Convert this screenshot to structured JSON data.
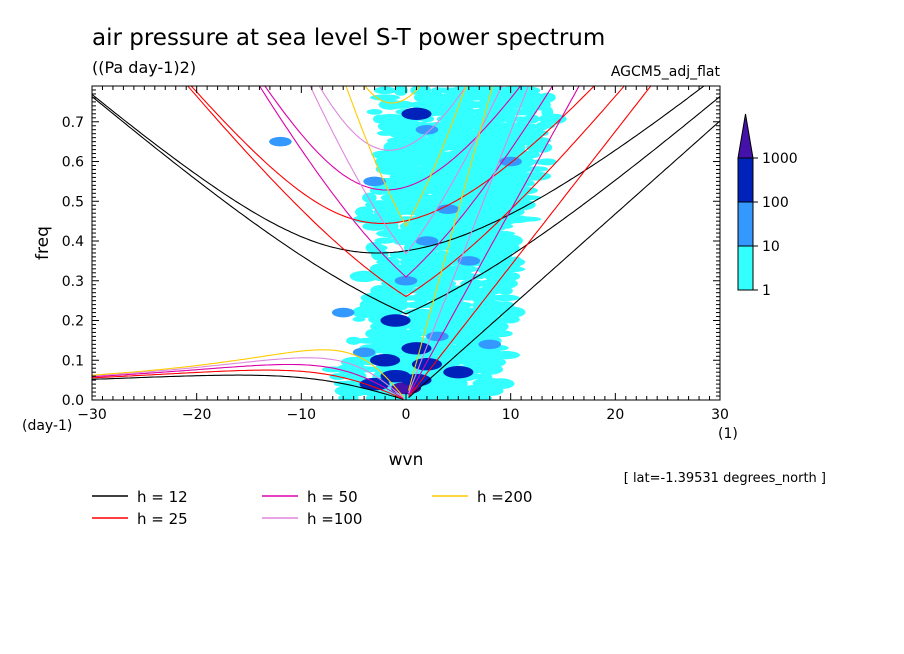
{
  "chart_data": {
    "type": "heatmap",
    "title": "air pressure at sea level S-T power spectrum",
    "units": "((Pa day-1)2)",
    "label_right": "AGCM5_adj_flat",
    "xlabel": "wvn",
    "ylabel": "freq",
    "x_unit": "(1)",
    "y_unit": "(day-1)",
    "xlim": [
      -30,
      30
    ],
    "ylim": [
      0,
      0.79
    ],
    "xticks": [
      -30,
      -20,
      -10,
      0,
      10,
      20,
      30
    ],
    "yticks": [
      0.0,
      0.1,
      0.2,
      0.3,
      0.4,
      0.5,
      0.6,
      0.7
    ],
    "annotation": "[ lat=-1.39531 degrees_north ]",
    "colorbar": {
      "levels": [
        "1",
        "10",
        "100",
        "1000"
      ],
      "colors": [
        "#33ffff",
        "#3399ff",
        "#0022bb",
        "#4411aa"
      ]
    },
    "legend": [
      {
        "label": "h = 12",
        "color": "#000000"
      },
      {
        "label": "h = 25",
        "color": "#ff0000"
      },
      {
        "label": "h = 50",
        "color": "#dd00aa"
      },
      {
        "label": "h =100",
        "color": "#dd88dd"
      },
      {
        "label": "h =200",
        "color": "#ffcc00"
      }
    ],
    "dispersion_h": [
      12,
      25,
      50,
      100,
      200
    ],
    "blobs": [
      {
        "x": 0,
        "y": 0.03,
        "level": 4
      },
      {
        "x": 1,
        "y": 0.05,
        "level": 3
      },
      {
        "x": -1,
        "y": 0.06,
        "level": 3
      },
      {
        "x": 2,
        "y": 0.09,
        "level": 3
      },
      {
        "x": -2,
        "y": 0.1,
        "level": 3
      },
      {
        "x": 1,
        "y": 0.13,
        "level": 3
      },
      {
        "x": -1,
        "y": 0.2,
        "level": 3
      },
      {
        "x": 3,
        "y": 0.16,
        "level": 2
      },
      {
        "x": -4,
        "y": 0.12,
        "level": 2
      },
      {
        "x": 0,
        "y": 0.3,
        "level": 2
      },
      {
        "x": 2,
        "y": 0.4,
        "level": 2
      },
      {
        "x": 1,
        "y": 0.72,
        "level": 3
      },
      {
        "x": 2,
        "y": 0.68,
        "level": 2
      },
      {
        "x": -3,
        "y": 0.55,
        "level": 2
      },
      {
        "x": 4,
        "y": 0.48,
        "level": 2
      },
      {
        "x": 6,
        "y": 0.35,
        "level": 2
      },
      {
        "x": -6,
        "y": 0.22,
        "level": 2
      },
      {
        "x": 5,
        "y": 0.07,
        "level": 3
      },
      {
        "x": -3,
        "y": 0.04,
        "level": 3
      },
      {
        "x": -12,
        "y": 0.65,
        "level": 2
      },
      {
        "x": 10,
        "y": 0.6,
        "level": 2
      },
      {
        "x": 8,
        "y": 0.14,
        "level": 2
      }
    ]
  }
}
